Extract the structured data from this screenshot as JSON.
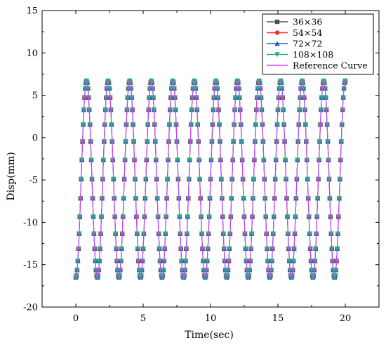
{
  "chart_data": {
    "type": "line",
    "title": "",
    "xlabel": "Time(sec)",
    "ylabel": "Disp(mm)",
    "xlim": [
      -2.5,
      22.5
    ],
    "ylim": [
      -20,
      15
    ],
    "xticks": [
      "0",
      "5",
      "10",
      "15",
      "20"
    ],
    "yticks": [
      "15",
      "10",
      "5",
      "0",
      "-5",
      "-10",
      "-15",
      "-20"
    ],
    "grid": false,
    "legend_position": "top-right",
    "signal": {
      "description_free": "",
      "t_start": 0,
      "t_end": 20,
      "period_sec": 1.6,
      "disp_min_mm": -16.5,
      "disp_max_mm": 6.7,
      "marker_interval_sec": 0.05
    },
    "series": [
      {
        "name": "36×36",
        "color": "#505050",
        "marker": "square"
      },
      {
        "name": "54×54",
        "color": "#ff2b2b",
        "marker": "circle"
      },
      {
        "name": "72×72",
        "color": "#1f5fd0",
        "marker": "triangle-up"
      },
      {
        "name": "108×108",
        "color": "#1fb37a",
        "marker": "triangle-down"
      },
      {
        "name": "Reference Curve",
        "color": "#cc44ee",
        "marker": "none"
      }
    ]
  }
}
